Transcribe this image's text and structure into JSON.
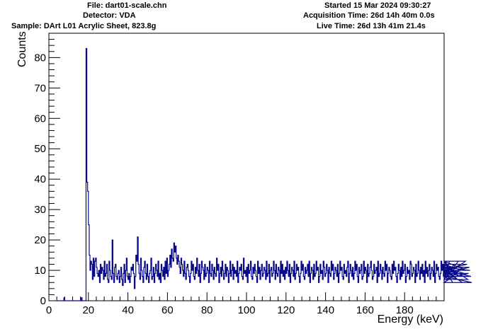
{
  "header": {
    "file": "File: dart01-scale.chn",
    "detector": "Detector: VDA",
    "sample": "Sample: DArt L01 Acrylic Sheet, 823.8g",
    "started": "Started 15 Mar 2024 09:30:27",
    "acquisition": "Acquisition Time: 26d 14h 40m 0.0s",
    "live": "Live Time: 26d 13h 41m 21.4s"
  },
  "colors": {
    "series": "#0a0a8c",
    "axis": "#000000",
    "background": "#ffffff"
  },
  "chart_data": {
    "type": "line",
    "style": "step-histogram",
    "xlabel": "Energy (keV)",
    "ylabel": "Counts",
    "xlim": [
      0,
      200
    ],
    "ylim": [
      0,
      88
    ],
    "x_ticks": [
      0,
      20,
      40,
      60,
      80,
      100,
      120,
      140,
      160,
      180
    ],
    "y_ticks": [
      0,
      10,
      20,
      30,
      40,
      50,
      60,
      70,
      80
    ],
    "grid": false,
    "legend": "none",
    "bin_width_kev": 0.4,
    "x_start_kev": 4.0,
    "counts": [
      0,
      0,
      0,
      0,
      0,
      0,
      0,
      0,
      0,
      1,
      0,
      0,
      0,
      0,
      0,
      0,
      0,
      0,
      0,
      0,
      0,
      0,
      0,
      0,
      0,
      0,
      0,
      0,
      0,
      0,
      0,
      1,
      0,
      0,
      0,
      0,
      0,
      83,
      39,
      36,
      25,
      15,
      10,
      13,
      12,
      7,
      14,
      8,
      13,
      14,
      11,
      9,
      8,
      10,
      6,
      12,
      9,
      11,
      10,
      7,
      13,
      8,
      9,
      12,
      7,
      6,
      13,
      10,
      8,
      7,
      20,
      9,
      6,
      11,
      12,
      8,
      7,
      9,
      10,
      6,
      8,
      11,
      7,
      5,
      9,
      12,
      6,
      10,
      14,
      8,
      7,
      9,
      6,
      8,
      11,
      10,
      12,
      9,
      4,
      8,
      15,
      13,
      21,
      12,
      9,
      7,
      14,
      10,
      8,
      6,
      11,
      13,
      9,
      7,
      12,
      8,
      6,
      9,
      10,
      14,
      7,
      8,
      11,
      6,
      9,
      12,
      10,
      8,
      13,
      7,
      9,
      6,
      12,
      10,
      8,
      11,
      7,
      13,
      9,
      14,
      8,
      10,
      12,
      15,
      11,
      17,
      14,
      13,
      19,
      16,
      18,
      14,
      12,
      15,
      13,
      11,
      9,
      14,
      12,
      10,
      8,
      13,
      9,
      7,
      11,
      12,
      10,
      8,
      6,
      9,
      13,
      10,
      12,
      8,
      7,
      11,
      9,
      14,
      10,
      8,
      12,
      6,
      9,
      13,
      11,
      10,
      7,
      12,
      8,
      9,
      11,
      10,
      6,
      13,
      9,
      8,
      12,
      10,
      7,
      11,
      9,
      8,
      14,
      10,
      12,
      6,
      9,
      11,
      8,
      13,
      10,
      7,
      9,
      12,
      8,
      11,
      10,
      6,
      9,
      13,
      8,
      10,
      12,
      7,
      11,
      9,
      10,
      8,
      13,
      6,
      9,
      11,
      10,
      12,
      8,
      7,
      14,
      9,
      10,
      8,
      11,
      6,
      12,
      9,
      10,
      13,
      8,
      7,
      11,
      9,
      12,
      10,
      8,
      6,
      13,
      9,
      11,
      7,
      10,
      12,
      8,
      9,
      11,
      10,
      7,
      13,
      8,
      9,
      12,
      6,
      10,
      11,
      8,
      9,
      13,
      10,
      7,
      12,
      9,
      8,
      11,
      10,
      6,
      13,
      9,
      12,
      8,
      10,
      7,
      11,
      9,
      13,
      10,
      8,
      12,
      6,
      9,
      11,
      10,
      8,
      13,
      7,
      9,
      12,
      10,
      11,
      8,
      6,
      9,
      13,
      10,
      12,
      8,
      7,
      11,
      9,
      10,
      12,
      8,
      13,
      6,
      9,
      11,
      10,
      7,
      12,
      8,
      9,
      13,
      10,
      11,
      6,
      8,
      12,
      9,
      10,
      7,
      13,
      11,
      8,
      9,
      12,
      10,
      6,
      11,
      9,
      8,
      13,
      10,
      12,
      7,
      9,
      11,
      10,
      8,
      12,
      6,
      9,
      13,
      10,
      11,
      8,
      7,
      12,
      9,
      10,
      8,
      11,
      13,
      6,
      9,
      12,
      10,
      8,
      11,
      7,
      9,
      13,
      10,
      12,
      8,
      6,
      11,
      9,
      10,
      12,
      7,
      8,
      13,
      9,
      11,
      10,
      6,
      12,
      8,
      9,
      11,
      13,
      10,
      7,
      8,
      12,
      9,
      10,
      11,
      6,
      13,
      8,
      9,
      12,
      10,
      7,
      11,
      9,
      8,
      13,
      10,
      12,
      6,
      9,
      11,
      10,
      8,
      7,
      12,
      9,
      13,
      10,
      11,
      8,
      6,
      9,
      12,
      10,
      7,
      11,
      8,
      13,
      9,
      10,
      12,
      6,
      8,
      11,
      9,
      10,
      7,
      13,
      12,
      8,
      9,
      11,
      10,
      6,
      12,
      8,
      9,
      13,
      10,
      7,
      11,
      9,
      12,
      8,
      10,
      6,
      13,
      9,
      11,
      8,
      10,
      12,
      7,
      9,
      11,
      10,
      8,
      13,
      6,
      9,
      12,
      10,
      11,
      8,
      7,
      9,
      13,
      10,
      12,
      8,
      6,
      11,
      9,
      10,
      7,
      12,
      8,
      13,
      9,
      11,
      10,
      6,
      8,
      12,
      9,
      10,
      11,
      7,
      13,
      8,
      9,
      12,
      10,
      6,
      11,
      9,
      8,
      13,
      10,
      12,
      7,
      9,
      11,
      10,
      8,
      6
    ]
  }
}
